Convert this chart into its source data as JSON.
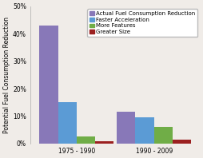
{
  "groups": [
    "1975 - 1990",
    "1990 - 2009"
  ],
  "series": [
    {
      "label": "Actual Fuel Consumption Reduction",
      "color": "#8878b8",
      "values": [
        43,
        11.5
      ]
    },
    {
      "label": "Faster Acceleration",
      "color": "#5b9bd5",
      "values": [
        15,
        9.5
      ]
    },
    {
      "label": "More Features",
      "color": "#70ad47",
      "values": [
        2.5,
        6
      ]
    },
    {
      "label": "Greater Size",
      "color": "#9b2020",
      "values": [
        1,
        1.5
      ]
    }
  ],
  "ylabel": "Potential Fuel Consumption Reduction",
  "ylim": [
    0,
    50
  ],
  "yticks": [
    0,
    10,
    20,
    30,
    40,
    50
  ],
  "ytick_labels": [
    "0%",
    "10%",
    "20%",
    "30%",
    "40%",
    "50%"
  ],
  "bar_width": 0.12,
  "group_centers": [
    0.35,
    0.85
  ],
  "xlim": [
    0.05,
    1.15
  ],
  "background_color": "#f0ece8",
  "legend_fontsize": 5.0,
  "axis_fontsize": 5.5,
  "tick_fontsize": 5.5
}
